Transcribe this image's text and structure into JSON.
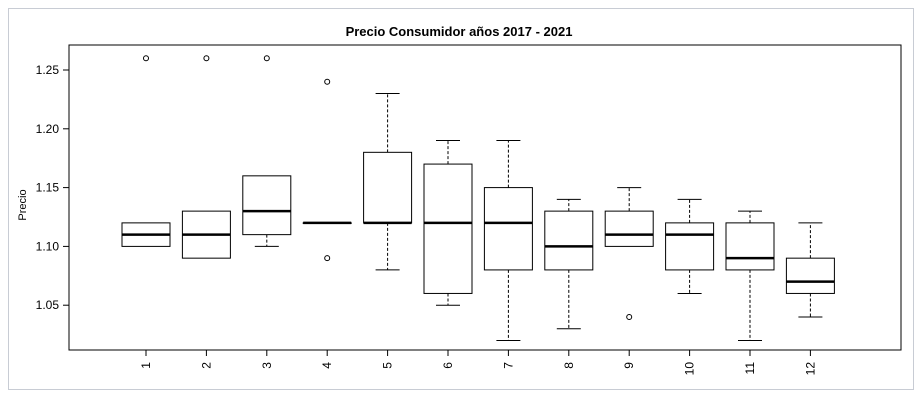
{
  "chart_data": {
    "type": "boxplot",
    "title": "Precio Consumidor años 2017 - 2021",
    "xlabel": "",
    "ylabel": "Precio",
    "ylim": [
      1.0,
      1.27
    ],
    "yticks": [
      "1.05",
      "1.10",
      "1.15",
      "1.20",
      "1.25"
    ],
    "grid": false,
    "categories": [
      "1",
      "2",
      "3",
      "4",
      "5",
      "6",
      "7",
      "8",
      "9",
      "10",
      "11",
      "12"
    ],
    "boxes": [
      {
        "category": "1",
        "whisker_low": 1.1,
        "q1": 1.1,
        "median": 1.11,
        "q3": 1.12,
        "whisker_high": 1.12,
        "outliers": [
          1.26
        ]
      },
      {
        "category": "2",
        "whisker_low": 1.09,
        "q1": 1.09,
        "median": 1.11,
        "q3": 1.13,
        "whisker_high": 1.13,
        "outliers": [
          1.26
        ]
      },
      {
        "category": "3",
        "whisker_low": 1.1,
        "q1": 1.11,
        "median": 1.13,
        "q3": 1.16,
        "whisker_high": 1.16,
        "outliers": [
          1.26
        ]
      },
      {
        "category": "4",
        "whisker_low": 1.12,
        "q1": 1.12,
        "median": 1.12,
        "q3": 1.12,
        "whisker_high": 1.12,
        "outliers": [
          1.24,
          1.09
        ]
      },
      {
        "category": "5",
        "whisker_low": 1.08,
        "q1": 1.12,
        "median": 1.12,
        "q3": 1.18,
        "whisker_high": 1.23,
        "outliers": []
      },
      {
        "category": "6",
        "whisker_low": 1.05,
        "q1": 1.06,
        "median": 1.12,
        "q3": 1.17,
        "whisker_high": 1.19,
        "outliers": []
      },
      {
        "category": "7",
        "whisker_low": 1.02,
        "q1": 1.08,
        "median": 1.12,
        "q3": 1.15,
        "whisker_high": 1.19,
        "outliers": []
      },
      {
        "category": "8",
        "whisker_low": 1.03,
        "q1": 1.08,
        "median": 1.1,
        "q3": 1.13,
        "whisker_high": 1.14,
        "outliers": []
      },
      {
        "category": "9",
        "whisker_low": 1.1,
        "q1": 1.1,
        "median": 1.11,
        "q3": 1.13,
        "whisker_high": 1.15,
        "outliers": [
          1.04
        ]
      },
      {
        "category": "10",
        "whisker_low": 1.06,
        "q1": 1.08,
        "median": 1.11,
        "q3": 1.12,
        "whisker_high": 1.14,
        "outliers": []
      },
      {
        "category": "11",
        "whisker_low": 1.02,
        "q1": 1.08,
        "median": 1.09,
        "q3": 1.12,
        "whisker_high": 1.13,
        "outliers": []
      },
      {
        "category": "12",
        "whisker_low": 1.04,
        "q1": 1.06,
        "median": 1.07,
        "q3": 1.09,
        "whisker_high": 1.12,
        "outliers": []
      }
    ]
  }
}
